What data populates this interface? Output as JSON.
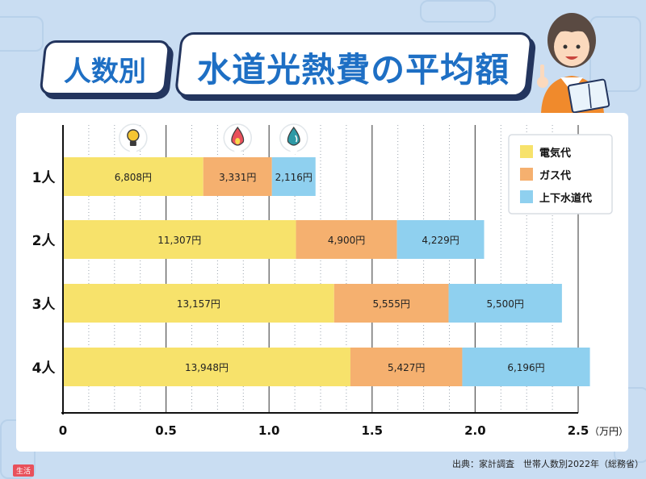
{
  "title": {
    "part1": "人数別",
    "part2": "水道光熱費の平均額"
  },
  "source": "出典：家計調査　世帯人数別2022年（総務省）",
  "tag": "生活",
  "chart_data": {
    "type": "bar",
    "orientation": "horizontal",
    "stacked": true,
    "categories": [
      "1人",
      "2人",
      "3人",
      "4人"
    ],
    "series": [
      {
        "name": "電気代",
        "color": "#f7e26b",
        "values": [
          6808,
          11307,
          13157,
          13948
        ],
        "labels": [
          "6,808円",
          "11,307円",
          "13,157円",
          "13,948円"
        ]
      },
      {
        "name": "ガス代",
        "color": "#f5b06f",
        "values": [
          3331,
          4900,
          5555,
          5427
        ],
        "labels": [
          "3,331円",
          "4,900円",
          "5,555円",
          "5,427円"
        ]
      },
      {
        "name": "上下水道代",
        "color": "#8fd0ef",
        "values": [
          2116,
          4229,
          5500,
          6196
        ],
        "labels": [
          "2,116円",
          "4,229円",
          "5,500円",
          "6,196円"
        ]
      }
    ],
    "xlim": [
      0,
      25000
    ],
    "xticks": [
      0,
      5000,
      10000,
      15000,
      20000,
      25000
    ],
    "xtick_labels": [
      "0",
      "0.5",
      "1.0",
      "1.5",
      "2.0",
      "2.5"
    ],
    "xunit": "（万円）",
    "grid": true,
    "legend_position": "top-right",
    "icons": [
      "lightbulb-icon",
      "flame-icon",
      "water-drop-icon"
    ]
  }
}
